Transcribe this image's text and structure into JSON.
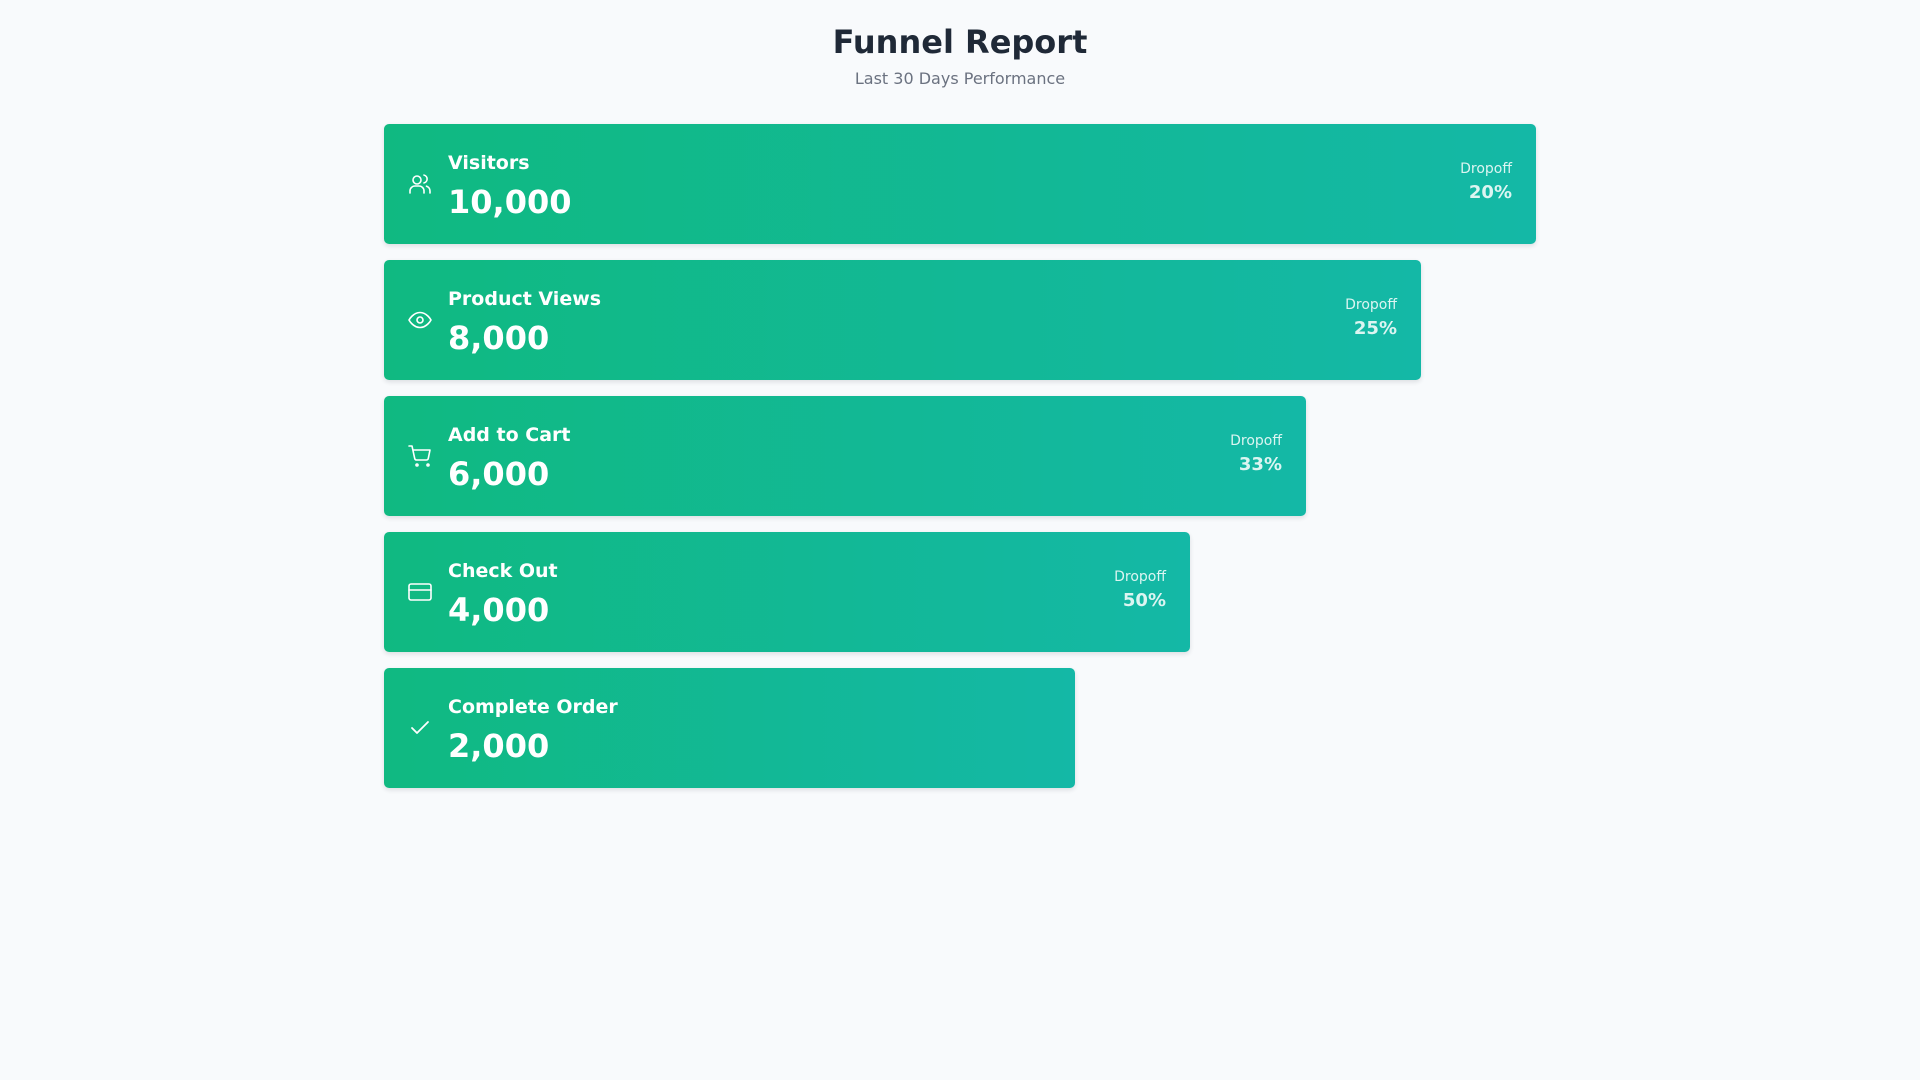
{
  "header": {
    "title": "Funnel Report",
    "subtitle": "Last 30 Days Performance"
  },
  "colors": {
    "background": "#f8fafc",
    "title": "#1f2937",
    "subtitle": "#6b7280",
    "stage_gradient_start": "#10b981",
    "stage_gradient_end": "#14b8a6",
    "stage_text": "#ffffff"
  },
  "stages": [
    {
      "label": "Visitors",
      "value": "10,000",
      "icon": "users-icon",
      "dropoff_label": "Dropoff",
      "dropoff_value": "20%"
    },
    {
      "label": "Product Views",
      "value": "8,000",
      "icon": "eye-icon",
      "dropoff_label": "Dropoff",
      "dropoff_value": "25%"
    },
    {
      "label": "Add to Cart",
      "value": "6,000",
      "icon": "shopping-cart-icon",
      "dropoff_label": "Dropoff",
      "dropoff_value": "33%"
    },
    {
      "label": "Check Out",
      "value": "4,000",
      "icon": "credit-card-icon",
      "dropoff_label": "Dropoff",
      "dropoff_value": "50%"
    },
    {
      "label": "Complete Order",
      "value": "2,000",
      "icon": "check-icon"
    }
  ]
}
